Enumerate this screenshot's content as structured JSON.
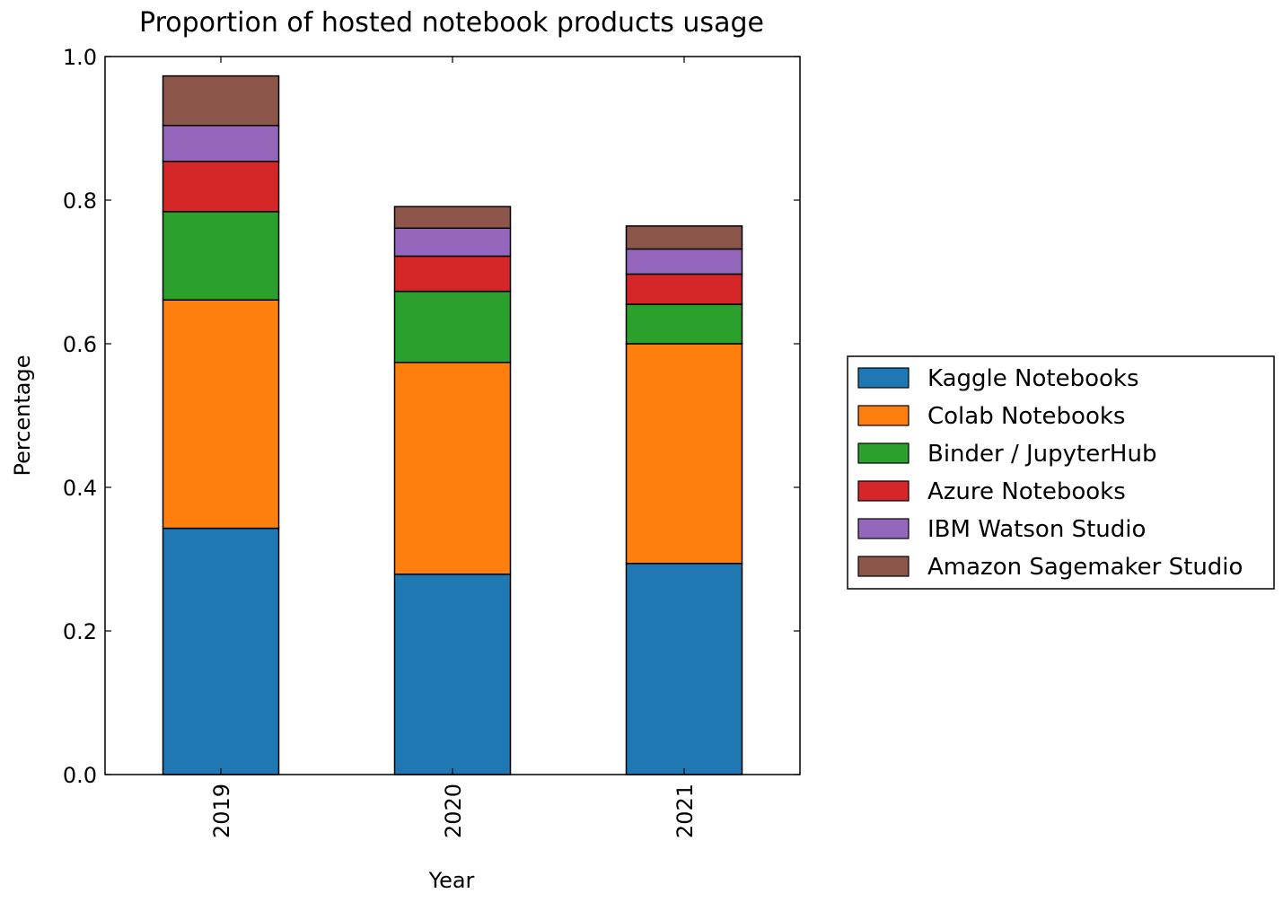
{
  "chart_data": {
    "type": "bar",
    "stacked": true,
    "title": "Proportion of hosted notebook products usage",
    "xlabel": "Year",
    "ylabel": "Percentage",
    "ylim": [
      0.0,
      1.0
    ],
    "yticks": [
      "0.0",
      "0.2",
      "0.4",
      "0.6",
      "0.8",
      "1.0"
    ],
    "categories": [
      "2019",
      "2020",
      "2021"
    ],
    "grid": false,
    "legend_position": "right",
    "series": [
      {
        "name": "Kaggle Notebooks",
        "color": "#1f77b4",
        "values": [
          0.343,
          0.279,
          0.294
        ]
      },
      {
        "name": "Colab Notebooks",
        "color": "#ff7f0e",
        "values": [
          0.318,
          0.295,
          0.306
        ]
      },
      {
        "name": "Binder / JupyterHub",
        "color": "#2ca02c",
        "values": [
          0.123,
          0.099,
          0.055
        ]
      },
      {
        "name": "Azure Notebooks",
        "color": "#d62728",
        "values": [
          0.07,
          0.049,
          0.042
        ]
      },
      {
        "name": "IBM Watson Studio",
        "color": "#9467bd",
        "values": [
          0.05,
          0.039,
          0.035
        ]
      },
      {
        "name": "Amazon Sagemaker Studio",
        "color": "#8c564b",
        "values": [
          0.069,
          0.03,
          0.032
        ]
      }
    ]
  }
}
